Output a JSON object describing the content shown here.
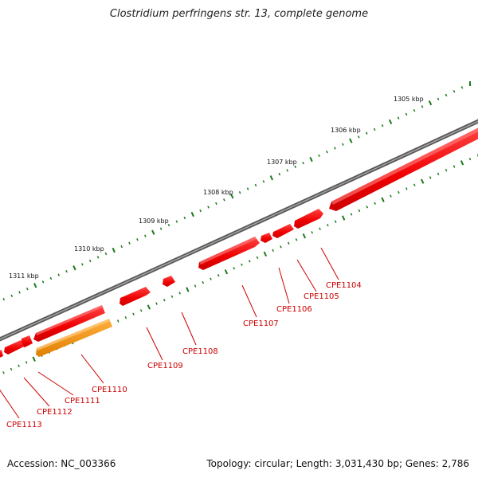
{
  "title": "Clostridium perfringens str. 13, complete genome",
  "footer": {
    "accession": "Accession: NC_003366",
    "summary": "Topology: circular; Length: 3,031,430 bp; Genes: 2,786"
  },
  "colors": {
    "backbone": "#7a7a7a",
    "gene_forward": "#ff0000",
    "gene_highlight": "#ff9900",
    "label": "#cc0000",
    "tick": "#1a7a1a"
  },
  "kbp_labels": [
    "1305 kbp",
    "1306 kbp",
    "1307 kbp",
    "1308 kbp",
    "1309 kbp",
    "1310 kbp",
    "1311 kbp"
  ],
  "genes": [
    {
      "name": "CPE1104"
    },
    {
      "name": "CPE1105"
    },
    {
      "name": "CPE1106"
    },
    {
      "name": "CPE1107"
    },
    {
      "name": "CPE1108"
    },
    {
      "name": "CPE1109"
    },
    {
      "name": "CPE1110"
    },
    {
      "name": "CPE1111"
    },
    {
      "name": "CPE1112"
    },
    {
      "name": "CPE1113"
    }
  ]
}
